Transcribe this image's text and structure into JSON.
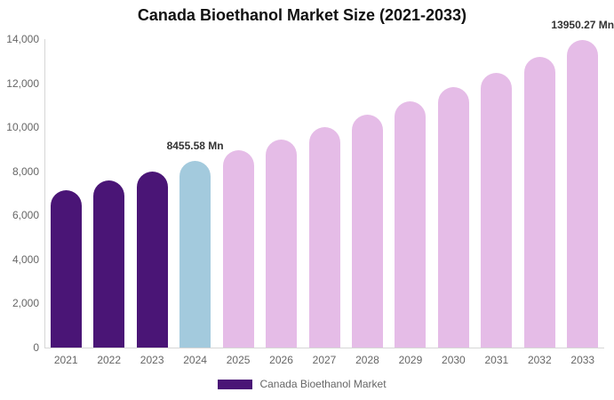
{
  "chart": {
    "title": "Canada Bioethanol Market Size (2021-2033)",
    "legend_label": "Canada Bioethanol Market"
  },
  "chart_data": {
    "type": "bar",
    "title": "Canada Bioethanol Market Size (2021-2033)",
    "xlabel": "",
    "ylabel": "",
    "categories": [
      "2021",
      "2022",
      "2023",
      "2024",
      "2025",
      "2026",
      "2027",
      "2028",
      "2029",
      "2030",
      "2031",
      "2032",
      "2033"
    ],
    "series": [
      {
        "name": "Canada Bioethanol Market",
        "values": [
          7156,
          7565,
          7998,
          8455.58,
          8939,
          9451,
          9991,
          10563,
          11167,
          11806,
          12482,
          13196,
          13950.27
        ]
      }
    ],
    "units": "Mn",
    "ylim": [
      0,
      14000
    ],
    "ytick_values": [
      0,
      2000,
      4000,
      6000,
      8000,
      10000,
      12000,
      14000
    ],
    "ytick_labels": [
      "0",
      "2,000",
      "4,000",
      "6,000",
      "8,000",
      "10,000",
      "12,000",
      "14,000"
    ],
    "grid": false,
    "legend_position": "bottom",
    "annotations": [
      {
        "category": "2024",
        "text": "8455.58 Mn"
      },
      {
        "category": "2033",
        "text": "13950.27 Mn"
      }
    ],
    "bar_colors": [
      "#4A1576",
      "#4A1576",
      "#4A1576",
      "#A3CADD",
      "#E5BCE7",
      "#E5BCE7",
      "#E5BCE7",
      "#E5BCE7",
      "#E5BCE7",
      "#E5BCE7",
      "#E5BCE7",
      "#E5BCE7",
      "#E5BCE7"
    ],
    "colors": {
      "historical": "#4A1576",
      "highlight": "#A3CADD",
      "forecast": "#E5BCE7",
      "axis_text": "#666666",
      "annotation_text": "#333333"
    }
  }
}
